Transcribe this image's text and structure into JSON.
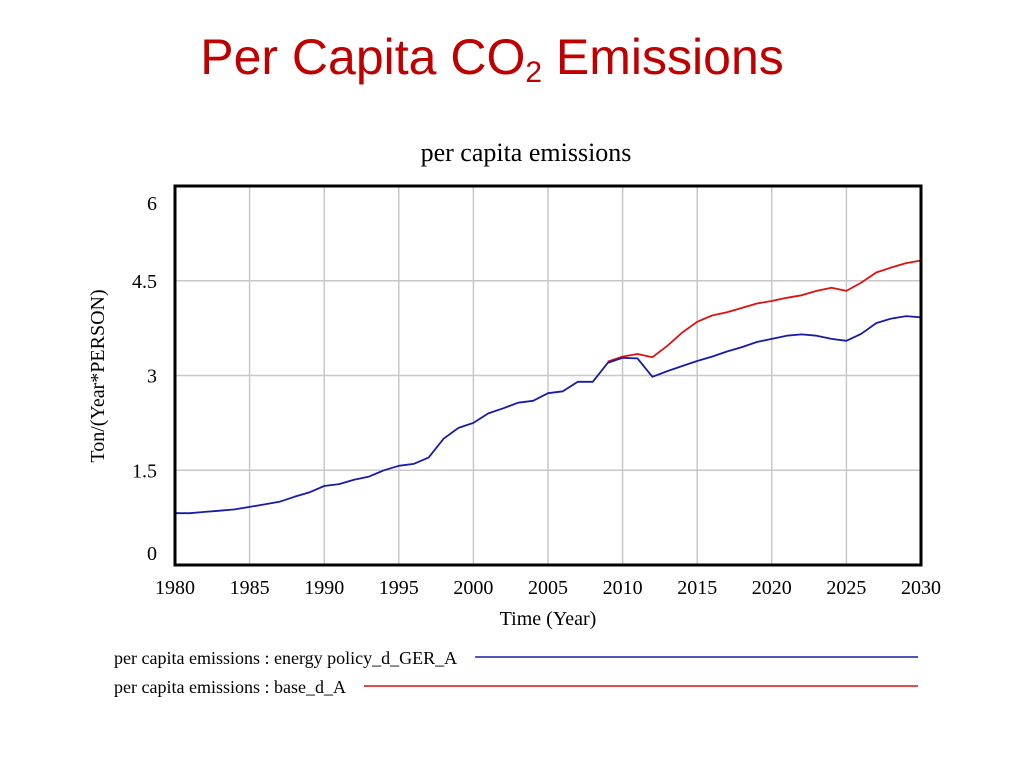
{
  "slide": {
    "title_main": "Per Capita CO",
    "title_sub": "2",
    "title_tail": " Emissions",
    "title_color": "#c00000"
  },
  "chart_data": {
    "type": "line",
    "title": "per capita emissions",
    "xlabel": "Time (Year)",
    "ylabel": "Ton/(Year*PERSON)",
    "xlim": [
      1980,
      2030
    ],
    "ylim": [
      0,
      6
    ],
    "xticks": [
      1980,
      1985,
      1990,
      1995,
      2000,
      2005,
      2010,
      2015,
      2020,
      2025,
      2030
    ],
    "yticks": [
      0,
      1.5,
      3,
      4.5,
      6
    ],
    "ytick_labels": [
      "0",
      "1.5",
      "3",
      "4.5",
      "6"
    ],
    "grid": true,
    "legend_position": "bottom",
    "series": [
      {
        "name": "per capita emissions : energy policy_d_GER_A",
        "color": "#1a1aaa",
        "x": [
          1980,
          1981,
          1982,
          1983,
          1984,
          1985,
          1986,
          1987,
          1988,
          1989,
          1990,
          1991,
          1992,
          1993,
          1994,
          1995,
          1996,
          1997,
          1998,
          1999,
          2000,
          2001,
          2002,
          2003,
          2004,
          2005,
          2006,
          2007,
          2008,
          2009,
          2010,
          2011,
          2012,
          2013,
          2014,
          2015,
          2016,
          2017,
          2018,
          2019,
          2020,
          2021,
          2022,
          2023,
          2024,
          2025,
          2026,
          2027,
          2028,
          2029,
          2030
        ],
        "values": [
          0.82,
          0.82,
          0.84,
          0.86,
          0.88,
          0.92,
          0.96,
          1.0,
          1.08,
          1.15,
          1.25,
          1.28,
          1.35,
          1.4,
          1.5,
          1.57,
          1.6,
          1.7,
          2.0,
          2.17,
          2.25,
          2.4,
          2.48,
          2.57,
          2.6,
          2.72,
          2.75,
          2.9,
          2.9,
          3.2,
          3.28,
          3.27,
          2.98,
          3.07,
          3.15,
          3.23,
          3.3,
          3.38,
          3.45,
          3.53,
          3.58,
          3.63,
          3.65,
          3.63,
          3.58,
          3.55,
          3.66,
          3.83,
          3.9,
          3.94,
          3.92
        ]
      },
      {
        "name": "per capita emissions : base_d_A",
        "color": "#dd1111",
        "x": [
          2009,
          2010,
          2011,
          2012,
          2013,
          2014,
          2015,
          2016,
          2017,
          2018,
          2019,
          2020,
          2021,
          2022,
          2023,
          2024,
          2025,
          2026,
          2027,
          2028,
          2029,
          2030
        ],
        "values": [
          3.22,
          3.3,
          3.34,
          3.29,
          3.47,
          3.68,
          3.85,
          3.95,
          4.0,
          4.07,
          4.14,
          4.18,
          4.23,
          4.27,
          4.34,
          4.39,
          4.34,
          4.47,
          4.63,
          4.71,
          4.78,
          4.82
        ]
      }
    ]
  }
}
